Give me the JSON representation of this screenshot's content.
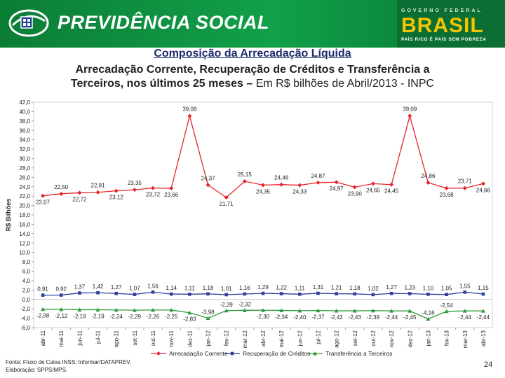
{
  "header": {
    "brand": "PREVIDÊNCIA SOCIAL",
    "gov_top": "GOVERNO FEDERAL",
    "gov_main": "BRASIL",
    "gov_slogan": "PAÍS RICO É PAÍS SEM POBREZA"
  },
  "titles": {
    "main": "Composição da Arrecadação Líquida",
    "line2": "Arrecadação Corrente, Recuperação de Créditos e Transferência a",
    "line3_bold": "Terceiros, nos últimos 25 meses –",
    "line3_normal": " Em R$ bilhões de Abril/2013 - INPC"
  },
  "colors": {
    "header_green": "#0a8a3c",
    "corrente": "#e8232a",
    "recuperacao": "#2b3f9c",
    "transferencia": "#2e9a3a"
  },
  "chart_data": {
    "type": "line",
    "ylabel": "R$ Bilhões",
    "ylim": [
      -6,
      42
    ],
    "ytick_step": 2,
    "yticks": [
      "-6,0",
      "-4,0",
      "-2,0",
      "0,0",
      "2,0",
      "4,0",
      "6,0",
      "8,0",
      "10,0",
      "12,0",
      "14,0",
      "16,0",
      "18,0",
      "20,0",
      "22,0",
      "24,0",
      "26,0",
      "28,0",
      "30,0",
      "32,0",
      "34,0",
      "36,0",
      "38,0",
      "40,0",
      "42,0"
    ],
    "categories": [
      "abr-11",
      "mai-11",
      "jun-11",
      "jul-11",
      "ago-11",
      "set-11",
      "out-11",
      "nov-11",
      "dez-11",
      "jan-12",
      "fev-12",
      "mar-12",
      "abr-12",
      "mai-12",
      "jun-12",
      "jul-12",
      "ago-12",
      "set-12",
      "out-12",
      "nov-12",
      "dez-12",
      "jan-13",
      "fev-13",
      "mar-13",
      "abr-13"
    ],
    "legend_position": "bottom",
    "series": [
      {
        "name": "Arrecadação Corrente",
        "values": [
          22.07,
          22.5,
          22.72,
          22.81,
          23.12,
          23.35,
          23.72,
          23.66,
          39.08,
          24.37,
          21.71,
          25.15,
          24.35,
          24.46,
          24.33,
          24.87,
          24.97,
          23.9,
          24.65,
          24.45,
          39.09,
          24.86,
          23.68,
          23.71,
          24.66
        ],
        "labels": [
          "22,07",
          "22,50",
          "22,72",
          "22,81",
          "23,12",
          "23,35",
          "23,72",
          "23,66",
          "39,08",
          "24,37",
          "21,71",
          "25,15",
          "24,35",
          "24,46",
          "24,33",
          "24,87",
          "24,97",
          "23,90",
          "24,65",
          "24,45",
          "39,09",
          "24,86",
          "23,68",
          "23,71",
          "24,66"
        ]
      },
      {
        "name": "Recuperação de Créditos",
        "values": [
          0.91,
          0.92,
          1.37,
          1.42,
          1.27,
          1.07,
          1.56,
          1.14,
          1.11,
          1.18,
          1.01,
          1.16,
          1.29,
          1.22,
          1.11,
          1.31,
          1.21,
          1.18,
          1.02,
          1.27,
          1.23,
          1.1,
          1.05,
          1.55,
          1.15
        ],
        "labels": [
          "0,91",
          "0,92",
          "1,37",
          "1,42",
          "1,27",
          "1,07",
          "1,56",
          "1,14",
          "1,11",
          "1,18",
          "1,01",
          "1,16",
          "1,29",
          "1,22",
          "1,11",
          "1,31",
          "1,21",
          "1,18",
          "1,02",
          "1,27",
          "1,23",
          "1,10",
          "1,05",
          "1,55",
          "1,15"
        ]
      },
      {
        "name": "Transferência a Terceiros",
        "values": [
          -2.08,
          -2.12,
          -2.19,
          -2.19,
          -2.24,
          -2.29,
          -2.26,
          -2.25,
          -2.83,
          -3.98,
          -2.39,
          -2.32,
          -2.3,
          -2.34,
          -2.4,
          -2.37,
          -2.42,
          -2.43,
          -2.39,
          -2.44,
          -2.45,
          -4.16,
          -2.54,
          -2.44,
          -2.44
        ],
        "labels": [
          "-2,08",
          "-2,12",
          "-2,19",
          "-2,19",
          "-2,24",
          "-2,29",
          "-2,26",
          "-2,25",
          "-2,83",
          "-3,98",
          "-2,39",
          "-2,32",
          "-2,30",
          "-2,34",
          "-2,40",
          "-2,37",
          "-2,42",
          "-2,43",
          "-2,39",
          "-2,44",
          "-2,45",
          "-4,16",
          "-2,54",
          "-2,44",
          "-2,44"
        ]
      }
    ]
  },
  "footer": {
    "source": "Fonte: Fluxo de Caixa INSS; Informar/DATAPREV.",
    "elaboration": "Elaboração: SPPS/MPS.",
    "page": "24"
  }
}
